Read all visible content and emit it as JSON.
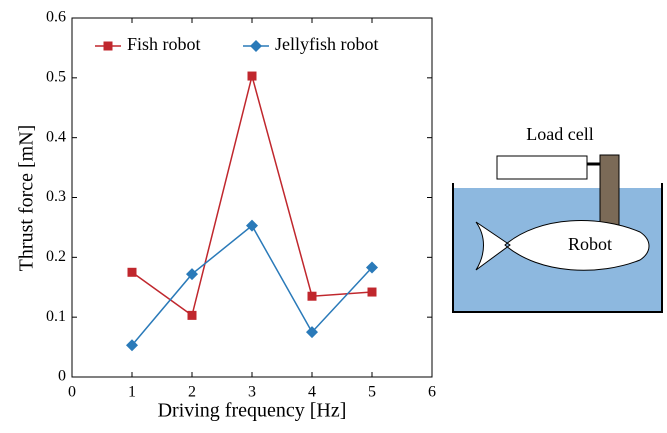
{
  "chart_data": {
    "type": "line",
    "xlabel": "Driving frequency [Hz]",
    "ylabel": "Thrust force [mN]",
    "x": [
      1,
      2,
      3,
      4,
      5
    ],
    "series": [
      {
        "name": "Fish robot",
        "color": "#c0272d",
        "marker": "square",
        "values": [
          0.175,
          0.103,
          0.503,
          0.135,
          0.142
        ]
      },
      {
        "name": "Jellyfish robot",
        "color": "#2a7ab9",
        "marker": "diamond",
        "values": [
          0.053,
          0.172,
          0.253,
          0.075,
          0.183
        ]
      }
    ],
    "xlim": [
      0,
      6
    ],
    "xticks": [
      0,
      1,
      2,
      3,
      4,
      5,
      6
    ],
    "ylim": [
      0,
      0.6
    ],
    "yticks": [
      0,
      0.1,
      0.2,
      0.3,
      0.4,
      0.5,
      0.6
    ],
    "grid": false,
    "legend": "top"
  },
  "diagram": {
    "load_cell": "Load cell",
    "robot": "Robot"
  }
}
